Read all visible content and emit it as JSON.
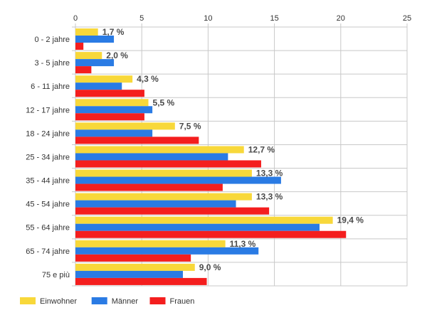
{
  "chart_data": {
    "type": "bar",
    "orientation": "horizontal",
    "categories": [
      "0 - 2 jahre",
      "3 - 5 jahre",
      "6 - 11 jahre",
      "12 - 17 jahre",
      "18 - 24 jahre",
      "25 - 34 jahre",
      "35 - 44 jahre",
      "45 - 54 jahre",
      "55 - 64 jahre",
      "65 - 74 jahre",
      "75 e più"
    ],
    "series": [
      {
        "name": "Einwohner",
        "color": "#f8d83a",
        "values": [
          1.7,
          2.0,
          4.3,
          5.5,
          7.5,
          12.7,
          13.3,
          13.3,
          19.4,
          11.3,
          9.0
        ]
      },
      {
        "name": "Männer",
        "color": "#2a7be4",
        "values": [
          2.9,
          2.9,
          3.5,
          5.8,
          5.8,
          11.5,
          15.5,
          12.1,
          18.4,
          13.8,
          8.1
        ]
      },
      {
        "name": "Frauen",
        "color": "#f41e1e",
        "values": [
          0.6,
          1.2,
          5.2,
          5.2,
          9.3,
          14.0,
          11.1,
          14.6,
          20.4,
          8.7,
          9.9
        ]
      }
    ],
    "data_labels": [
      "1,7 %",
      "2,0 %",
      "4,3 %",
      "5,5 %",
      "7,5 %",
      "12,7 %",
      "13,3 %",
      "13,3 %",
      "19,4 %",
      "11,3 %",
      "9,0 %"
    ],
    "xlim": [
      0,
      25
    ],
    "xticks": [
      0,
      5,
      10,
      15,
      20,
      25
    ],
    "x_axis_position": "top",
    "grid": true,
    "legend_position": "bottom-left",
    "title": "",
    "xlabel": "",
    "ylabel": ""
  }
}
